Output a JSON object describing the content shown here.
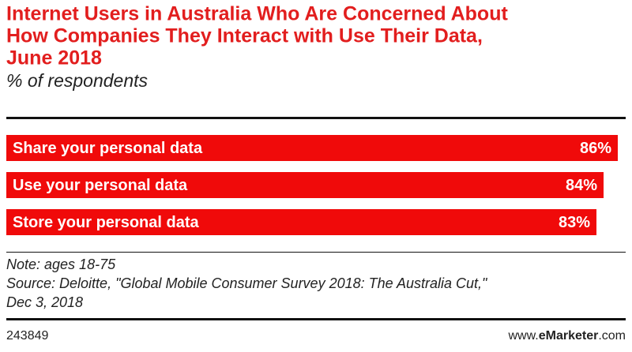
{
  "chart_data": {
    "type": "bar",
    "title": [
      "Internet Users in Australia Who Are Concerned About",
      "How Companies They Interact with Use Their Data,",
      "June 2018"
    ],
    "subtitle": "% of respondents",
    "categories": [
      "Share your personal data",
      "Use your personal data",
      "Store your personal data"
    ],
    "values": [
      86,
      84,
      83
    ],
    "value_labels": [
      "86%",
      "84%",
      "83%"
    ],
    "color": "#f00a0a",
    "note": "Note: ages 18-75",
    "source": [
      "Source: Deloitte, \"Global Mobile Consumer Survey 2018: The Australia Cut,\"",
      "Dec 3, 2018"
    ],
    "chart_id": "243849",
    "brand": [
      "www.",
      "eMarketer",
      ".com"
    ]
  }
}
